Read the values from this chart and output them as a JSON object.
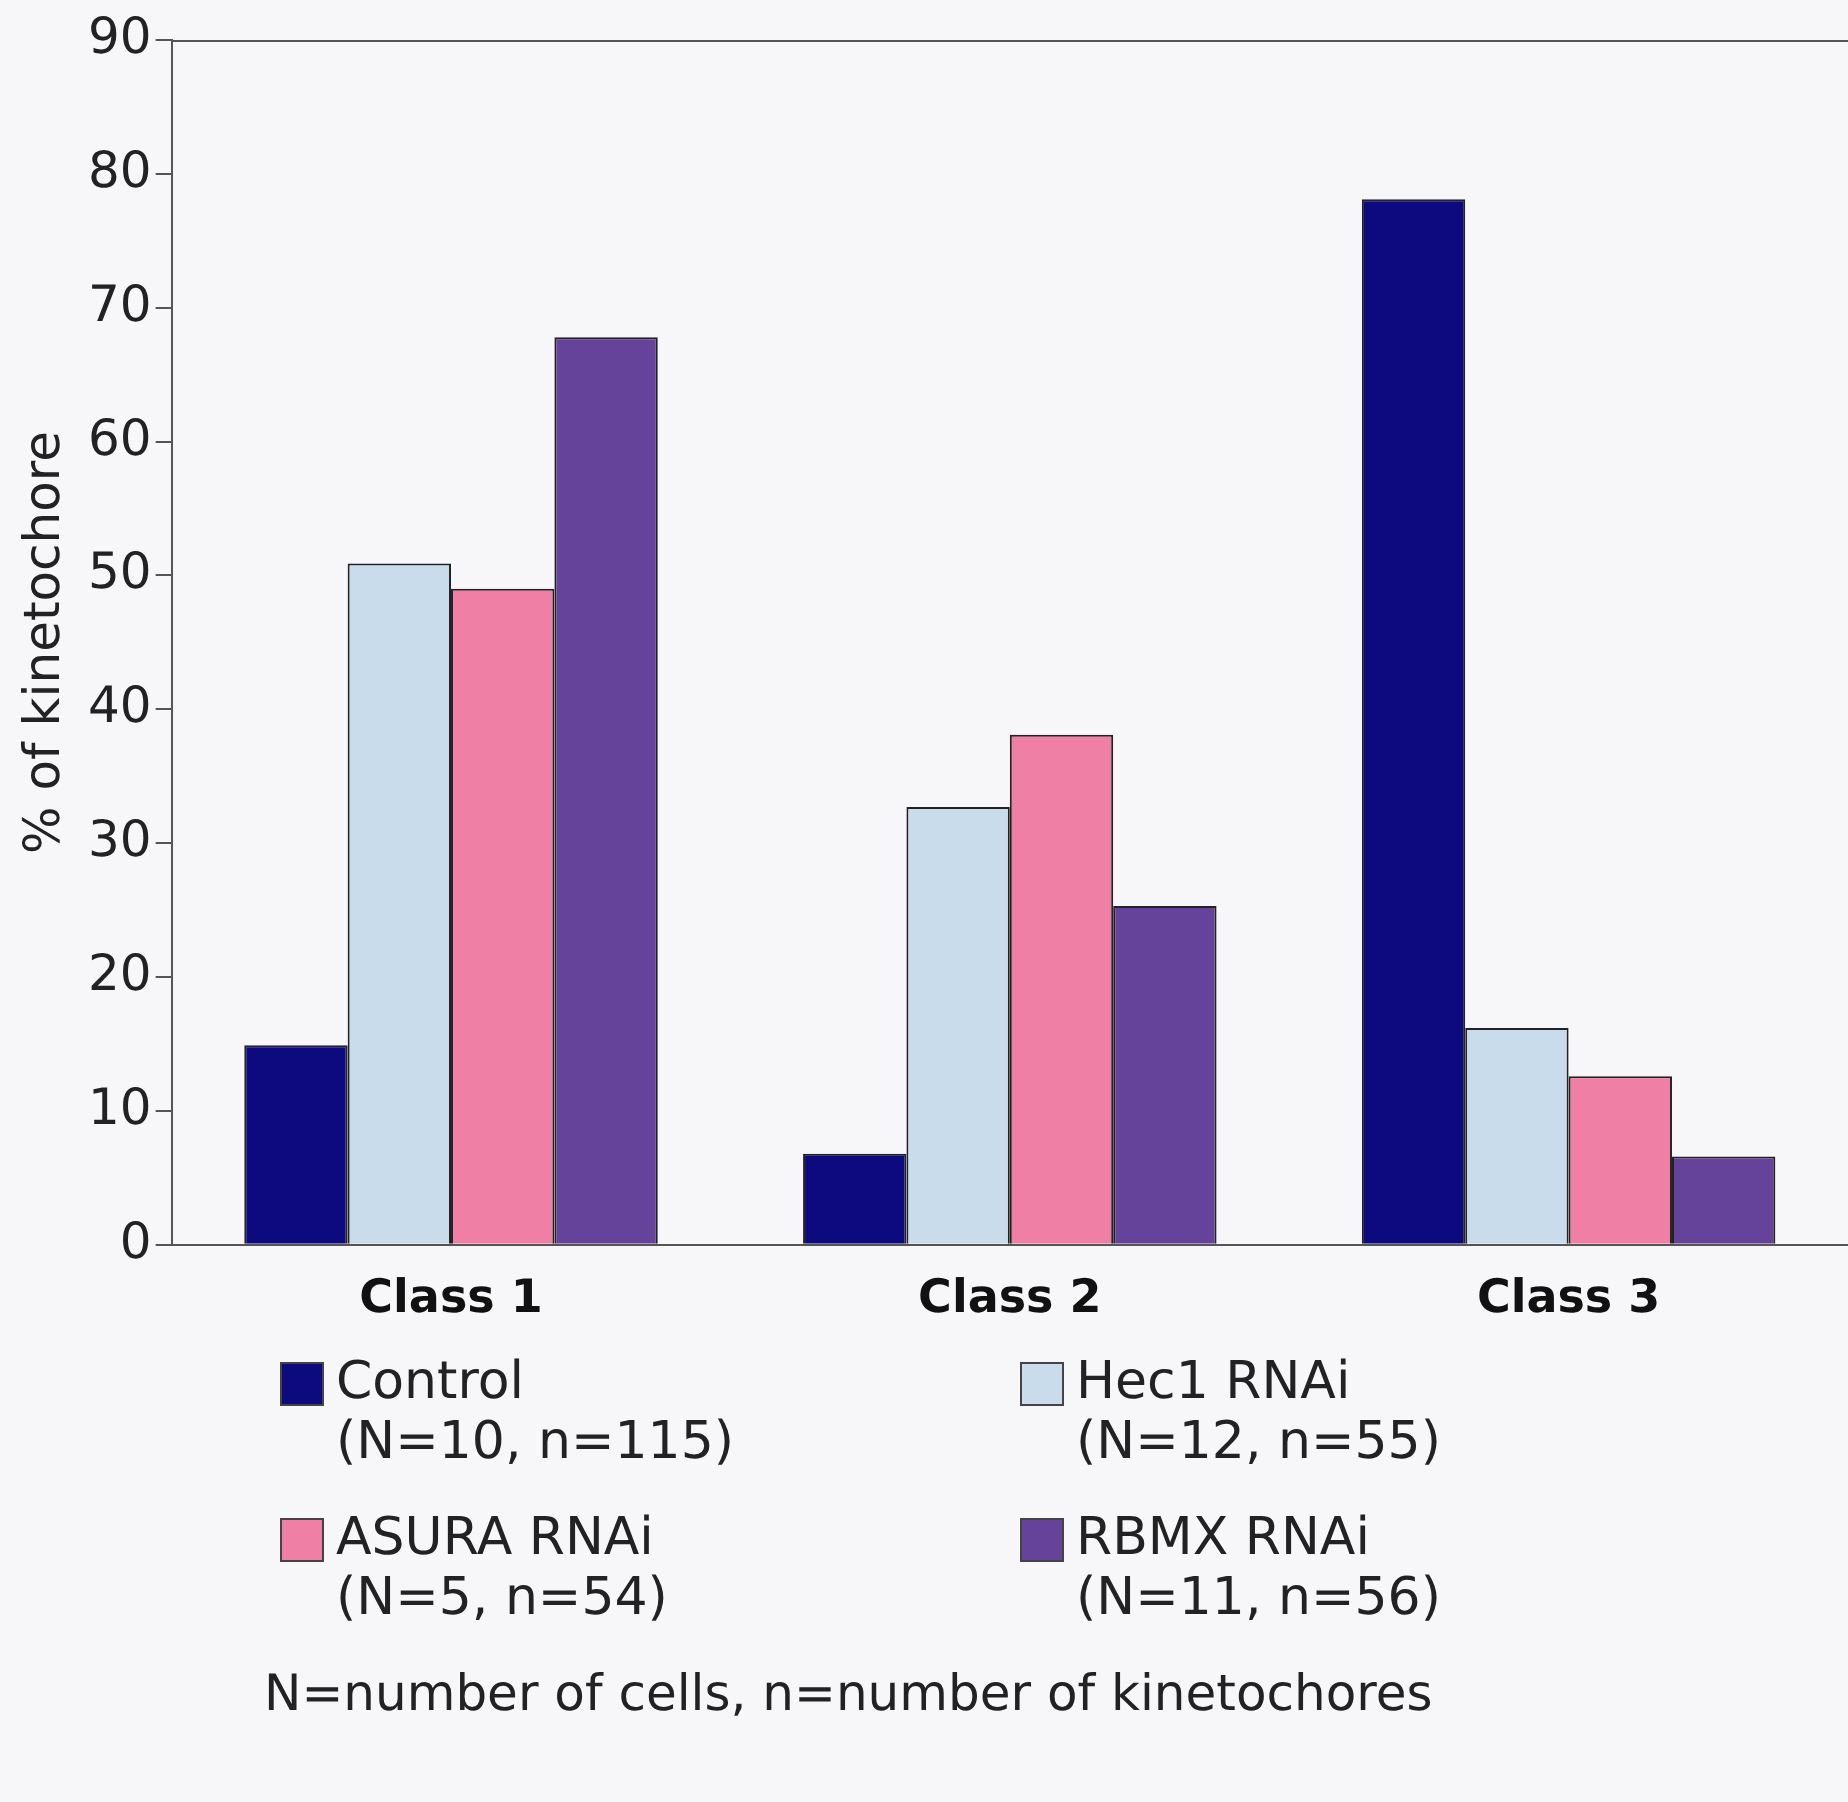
{
  "chart_data": {
    "type": "bar",
    "ylabel": "% of kinetochore",
    "categories": [
      "Class 1",
      "Class 2",
      "Class 3"
    ],
    "series": [
      {
        "name": "Control\n(N=10, n=115)",
        "color": "#0c0a7e",
        "values": [
          14.9,
          6.8,
          78.1
        ]
      },
      {
        "name": "Hec1 RNAi\n(N=12, n=55)",
        "color": "#c8dcec",
        "values": [
          50.9,
          32.7,
          16.2
        ]
      },
      {
        "name": "ASURA RNAi\n(N=5, n=54)",
        "color": "#f07fa6",
        "values": [
          49.0,
          38.1,
          12.6
        ]
      },
      {
        "name": "RBMX RNAi\n(N=11, n=56)",
        "color": "#66439a",
        "values": [
          67.8,
          25.3,
          6.6
        ]
      }
    ],
    "ylim": [
      0,
      90
    ],
    "yticks": [
      0,
      10,
      20,
      30,
      40,
      50,
      60,
      70,
      80,
      90
    ],
    "grid": false,
    "legend": "bottom",
    "annotations": [
      "N=number of cells, n=number of kinetochores"
    ]
  }
}
